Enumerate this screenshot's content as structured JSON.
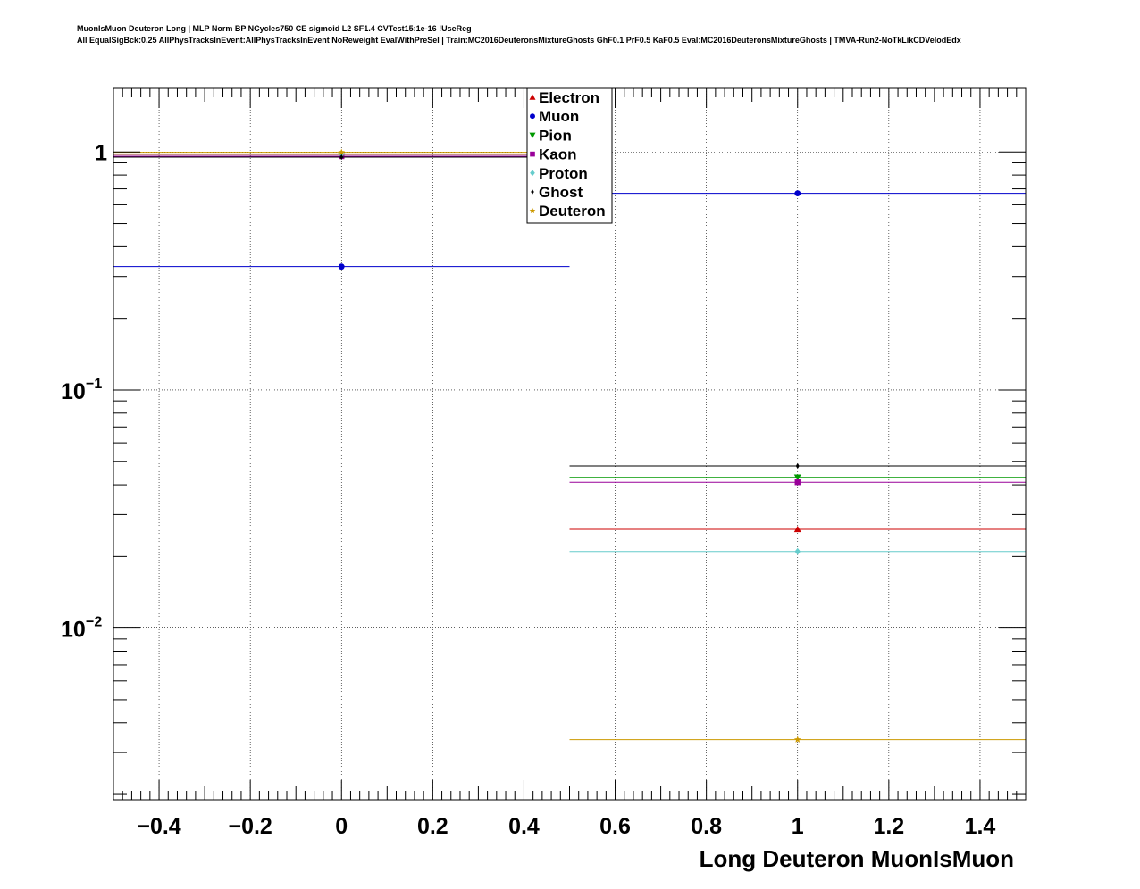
{
  "header": {
    "title_line1": "MuonIsMuon Deuteron Long | MLP Norm BP NCycles750 CE sigmoid L2 SF1.4 CVTest15:1e-16 !UseReg",
    "title_line2": "All EqualSigBck:0.25 AllPhysTracksInEvent:AllPhysTracksInEvent NoReweight EvalWithPreSel | Train:MC2016DeuteronsMixtureGhosts GhF0.1 PrF0.5 KaF0.5 Eval:MC2016DeuteronsMixtureGhosts | TMVA-Run2-NoTkLikCDVelodEdx"
  },
  "chart_data": {
    "type": "scatter",
    "xlabel": "Long Deuteron MuonIsMuon",
    "ylabel": "",
    "xlim": [
      -0.5,
      1.5
    ],
    "ylim": [
      0.0019,
      1.85
    ],
    "yscale": "log",
    "grid": true,
    "legend_position": "top-center",
    "x_ticks": [
      -0.4,
      -0.2,
      0,
      0.2,
      0.4,
      0.6,
      0.8,
      1,
      1.2,
      1.4
    ],
    "x_tick_labels": [
      "−0.4",
      "−0.2",
      "0",
      "0.2",
      "0.4",
      "0.6",
      "0.8",
      "1",
      "1.2",
      "1.4"
    ],
    "y_ticks": [
      {
        "value": 1,
        "base": "1",
        "exp": ""
      },
      {
        "value": 0.1,
        "base": "10",
        "exp": "−1"
      },
      {
        "value": 0.01,
        "base": "10",
        "exp": "−2"
      }
    ],
    "bins": [
      {
        "center": 0,
        "low": -0.5,
        "high": 0.5
      },
      {
        "center": 1,
        "low": 0.5,
        "high": 1.5
      }
    ],
    "series": [
      {
        "name": "Electron",
        "color": "#cc0000",
        "marker": "triangle-up",
        "values": [
          0.975,
          0.026
        ]
      },
      {
        "name": "Muon",
        "color": "#0000cc",
        "marker": "circle",
        "values": [
          0.33,
          0.67
        ]
      },
      {
        "name": "Pion",
        "color": "#009900",
        "marker": "triangle-down",
        "values": [
          0.96,
          0.043
        ]
      },
      {
        "name": "Kaon",
        "color": "#990099",
        "marker": "square",
        "values": [
          0.96,
          0.041
        ]
      },
      {
        "name": "Proton",
        "color": "#66cccc",
        "marker": "diamond",
        "values": [
          0.979,
          0.021
        ]
      },
      {
        "name": "Ghost",
        "color": "#000000",
        "marker": "diamond-small",
        "values": [
          0.952,
          0.048
        ]
      },
      {
        "name": "Deuteron",
        "color": "#cc9900",
        "marker": "star",
        "values": [
          0.9966,
          0.0034
        ]
      }
    ]
  }
}
